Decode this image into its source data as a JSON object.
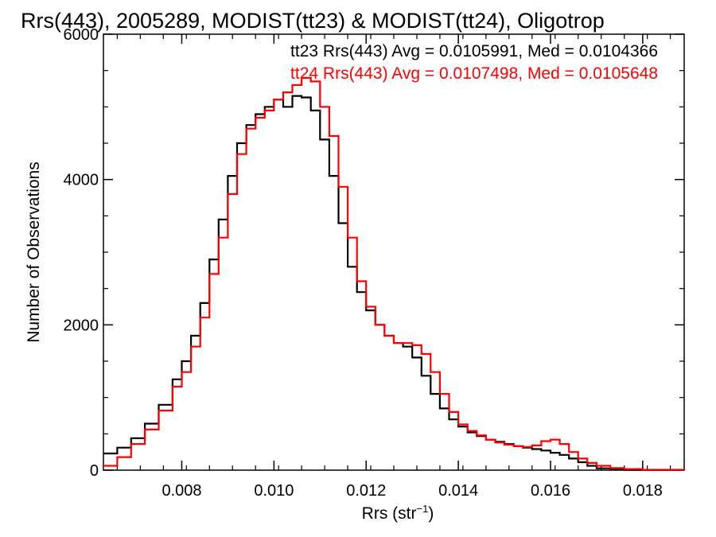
{
  "chart_data": {
    "type": "line",
    "title": "Rrs(443), 2005289, MODIST(tt23) & MODIST(tt24), Oligotrop",
    "xlabel_main": "Rrs (str",
    "xlabel_sup": "−1",
    "xlabel_end": ")",
    "ylabel": "Number of Observations",
    "xlim": [
      0.0063,
      0.0189
    ],
    "ylim": [
      0,
      6000
    ],
    "x_ticks": [
      0.008,
      0.01,
      0.012,
      0.014,
      0.016,
      0.018
    ],
    "x_tick_labels": [
      "0.008",
      "0.010",
      "0.012",
      "0.014",
      "0.016",
      "0.018"
    ],
    "y_ticks": [
      0,
      2000,
      4000,
      6000
    ],
    "y_tick_labels": [
      "0",
      "2000",
      "4000",
      "6000"
    ],
    "grid": false,
    "legend_placement": "top-right",
    "series": [
      {
        "name": "tt23 Rrs(443) Avg = 0.0105991, Med = 0.0104366",
        "color": "#000000",
        "step": true,
        "points": [
          [
            0.0063,
            230
          ],
          [
            0.0066,
            310
          ],
          [
            0.0069,
            440
          ],
          [
            0.0072,
            640
          ],
          [
            0.0075,
            900
          ],
          [
            0.0078,
            1250
          ],
          [
            0.008,
            1500
          ],
          [
            0.0082,
            1850
          ],
          [
            0.0084,
            2300
          ],
          [
            0.0086,
            2900
          ],
          [
            0.0088,
            3450
          ],
          [
            0.009,
            4050
          ],
          [
            0.0092,
            4500
          ],
          [
            0.0094,
            4750
          ],
          [
            0.0096,
            4900
          ],
          [
            0.0098,
            5000
          ],
          [
            0.01,
            5100
          ],
          [
            0.0102,
            5000
          ],
          [
            0.0104,
            5150
          ],
          [
            0.0106,
            5130
          ],
          [
            0.0108,
            4950
          ],
          [
            0.011,
            4550
          ],
          [
            0.0112,
            4050
          ],
          [
            0.0114,
            3400
          ],
          [
            0.0116,
            2800
          ],
          [
            0.0118,
            2450
          ],
          [
            0.012,
            2200
          ],
          [
            0.0122,
            2000
          ],
          [
            0.0124,
            1850
          ],
          [
            0.0126,
            1750
          ],
          [
            0.0128,
            1700
          ],
          [
            0.013,
            1550
          ],
          [
            0.0132,
            1300
          ],
          [
            0.0134,
            1050
          ],
          [
            0.0136,
            850
          ],
          [
            0.0138,
            700
          ],
          [
            0.014,
            600
          ],
          [
            0.0142,
            520
          ],
          [
            0.0144,
            470
          ],
          [
            0.0146,
            420
          ],
          [
            0.0148,
            390
          ],
          [
            0.015,
            360
          ],
          [
            0.0152,
            330
          ],
          [
            0.0154,
            310
          ],
          [
            0.0156,
            290
          ],
          [
            0.0158,
            270
          ],
          [
            0.016,
            240
          ],
          [
            0.0162,
            210
          ],
          [
            0.0164,
            160
          ],
          [
            0.0166,
            110
          ],
          [
            0.0168,
            60
          ],
          [
            0.017,
            25
          ],
          [
            0.0173,
            10
          ],
          [
            0.0176,
            4
          ],
          [
            0.018,
            2
          ],
          [
            0.0189,
            0
          ]
        ]
      },
      {
        "name": "tt24 Rrs(443) Avg = 0.0107498, Med = 0.0105648",
        "color": "#ff0000",
        "step": true,
        "points": [
          [
            0.0063,
            60
          ],
          [
            0.0066,
            180
          ],
          [
            0.0069,
            360
          ],
          [
            0.0072,
            560
          ],
          [
            0.0075,
            820
          ],
          [
            0.0078,
            1150
          ],
          [
            0.008,
            1350
          ],
          [
            0.0082,
            1700
          ],
          [
            0.0084,
            2100
          ],
          [
            0.0086,
            2700
          ],
          [
            0.0088,
            3200
          ],
          [
            0.009,
            3800
          ],
          [
            0.0092,
            4350
          ],
          [
            0.0094,
            4700
          ],
          [
            0.0096,
            4850
          ],
          [
            0.0098,
            4950
          ],
          [
            0.01,
            5100
          ],
          [
            0.0102,
            5200
          ],
          [
            0.0104,
            5300
          ],
          [
            0.0106,
            5400
          ],
          [
            0.0108,
            5350
          ],
          [
            0.011,
            5000
          ],
          [
            0.0112,
            4600
          ],
          [
            0.0114,
            3900
          ],
          [
            0.0116,
            3200
          ],
          [
            0.0118,
            2600
          ],
          [
            0.012,
            2250
          ],
          [
            0.0122,
            2000
          ],
          [
            0.0124,
            1850
          ],
          [
            0.0126,
            1750
          ],
          [
            0.0128,
            1750
          ],
          [
            0.013,
            1720
          ],
          [
            0.0132,
            1600
          ],
          [
            0.0134,
            1350
          ],
          [
            0.0136,
            1050
          ],
          [
            0.0138,
            800
          ],
          [
            0.014,
            630
          ],
          [
            0.0142,
            540
          ],
          [
            0.0144,
            480
          ],
          [
            0.0146,
            420
          ],
          [
            0.0148,
            380
          ],
          [
            0.015,
            350
          ],
          [
            0.0152,
            330
          ],
          [
            0.0154,
            320
          ],
          [
            0.0156,
            340
          ],
          [
            0.0158,
            400
          ],
          [
            0.016,
            420
          ],
          [
            0.0162,
            360
          ],
          [
            0.0164,
            250
          ],
          [
            0.0166,
            160
          ],
          [
            0.0168,
            100
          ],
          [
            0.017,
            60
          ],
          [
            0.0173,
            30
          ],
          [
            0.0176,
            15
          ],
          [
            0.018,
            6
          ],
          [
            0.0189,
            0
          ]
        ]
      }
    ]
  }
}
